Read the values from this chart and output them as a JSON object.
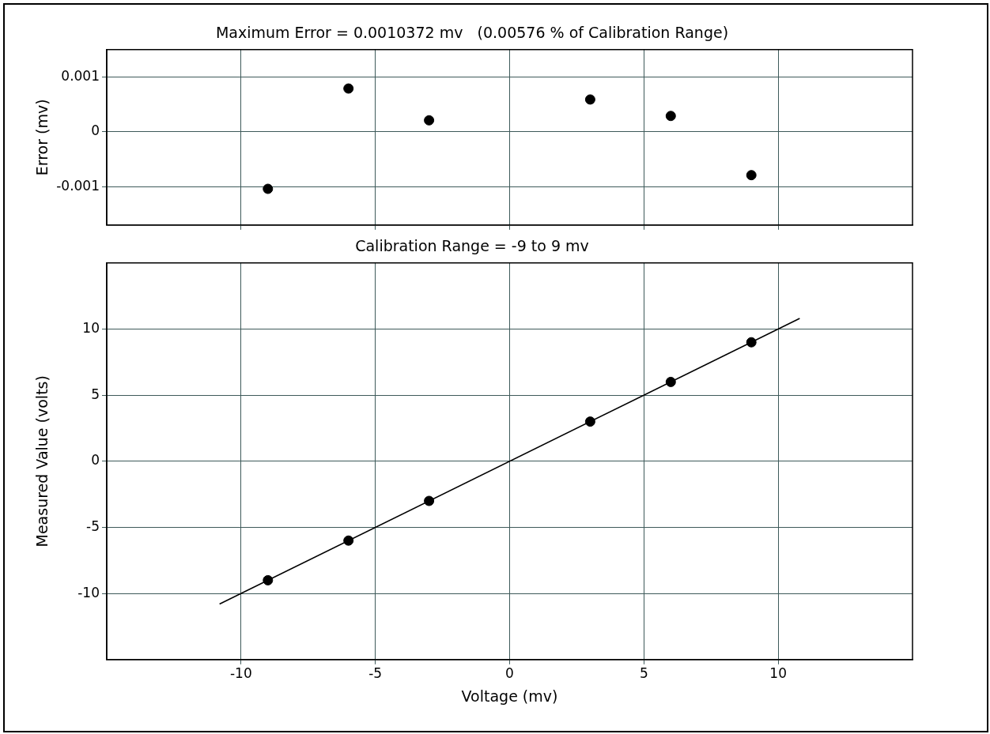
{
  "chart_data": [
    {
      "type": "scatter",
      "title": "Maximum Error = 0.0010372 mv   (0.00576 % of Calibration Range)",
      "ylabel": "Error (mv)",
      "x": [
        -9,
        -6,
        -3,
        3,
        6,
        9
      ],
      "series": [
        {
          "color": "#000000",
          "values": [
            -0.00104,
            0.00079,
            0.00021,
            0.00059,
            0.00029,
            -0.00079
          ]
        }
      ],
      "xlim": [
        -15,
        15
      ],
      "xticks": [
        -10,
        -5,
        0,
        5,
        10
      ],
      "ylim": [
        -0.0017,
        0.0015
      ],
      "yticks": [
        -0.001,
        0,
        0.001
      ],
      "grid": true,
      "tick_labels": "y",
      "marker": "circle",
      "legend": false
    },
    {
      "type": "scatter",
      "title": "Calibration Range = -9 to 9 mv",
      "xlabel": "Voltage (mv)",
      "ylabel": "Measured Value (volts)",
      "series": [
        {
          "color": "#000000",
          "marker": "circle",
          "x": [
            -9,
            -6,
            -3,
            3,
            6,
            9
          ],
          "values": [
            -9,
            -6,
            -3,
            3,
            6,
            9
          ]
        },
        {
          "type": "line",
          "color": "#000000",
          "x": [
            -10.8,
            10.8
          ],
          "values": [
            -10.8,
            10.8
          ]
        }
      ],
      "xlim": [
        -15,
        15
      ],
      "xticks": [
        -10,
        -5,
        0,
        5,
        10
      ],
      "ylim": [
        -15,
        15
      ],
      "yticks": [
        -10,
        -5,
        0,
        5,
        10
      ],
      "grid": true,
      "legend": false
    }
  ]
}
